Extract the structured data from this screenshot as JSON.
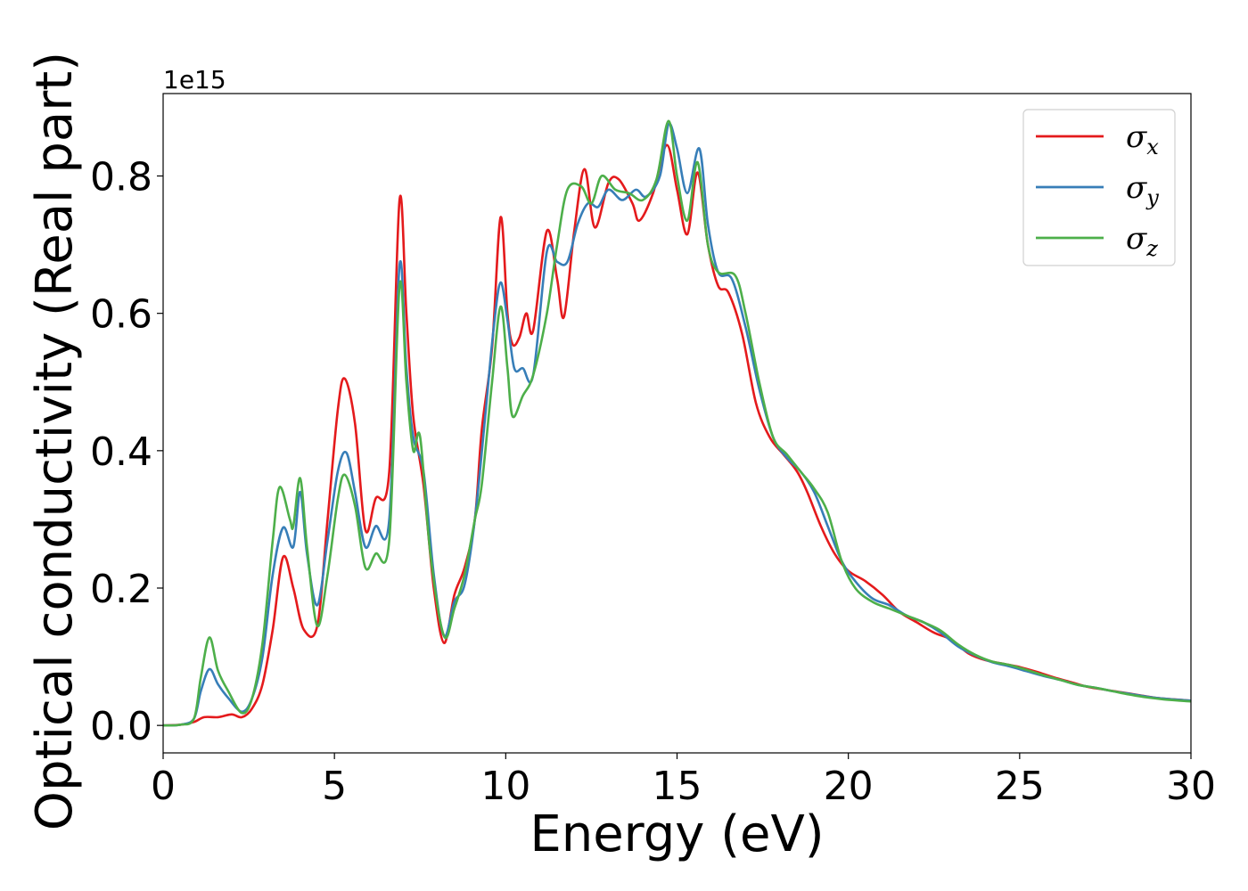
{
  "chart_data": {
    "type": "line",
    "title": "",
    "xlabel": "Energy (eV)",
    "ylabel": "Optical conductivity (Real part)",
    "y_offset_label": "1e15",
    "y_scale": 1000000000000000.0,
    "xlim": [
      0,
      30
    ],
    "ylim": [
      -0.04,
      0.92
    ],
    "xticks": [
      0,
      5,
      10,
      15,
      20,
      25,
      30
    ],
    "xtick_labels": [
      "0",
      "5",
      "10",
      "15",
      "20",
      "25",
      "30"
    ],
    "yticks": [
      0.0,
      0.2,
      0.4,
      0.6,
      0.8
    ],
    "ytick_labels": [
      "0.0",
      "0.2",
      "0.4",
      "0.6",
      "0.8"
    ],
    "grid": false,
    "legend_position": "top-right",
    "series": [
      {
        "name": "σx",
        "legend_symbol": "σ",
        "legend_sub": "x",
        "color": "#e41a1c",
        "points": [
          [
            0,
            0
          ],
          [
            0.5,
            0.001
          ],
          [
            0.9,
            0.005
          ],
          [
            1.2,
            0.012
          ],
          [
            1.6,
            0.012
          ],
          [
            2.0,
            0.016
          ],
          [
            2.3,
            0.012
          ],
          [
            2.6,
            0.025
          ],
          [
            2.9,
            0.06
          ],
          [
            3.2,
            0.14
          ],
          [
            3.5,
            0.245
          ],
          [
            3.8,
            0.2
          ],
          [
            4.1,
            0.14
          ],
          [
            4.5,
            0.145
          ],
          [
            4.8,
            0.3
          ],
          [
            5.1,
            0.46
          ],
          [
            5.3,
            0.505
          ],
          [
            5.6,
            0.44
          ],
          [
            5.9,
            0.285
          ],
          [
            6.2,
            0.33
          ],
          [
            6.6,
            0.37
          ],
          [
            6.9,
            0.765
          ],
          [
            7.1,
            0.6
          ],
          [
            7.3,
            0.45
          ],
          [
            7.6,
            0.35
          ],
          [
            7.9,
            0.2
          ],
          [
            8.2,
            0.12
          ],
          [
            8.5,
            0.19
          ],
          [
            8.8,
            0.23
          ],
          [
            9.1,
            0.3
          ],
          [
            9.3,
            0.43
          ],
          [
            9.6,
            0.55
          ],
          [
            9.85,
            0.74
          ],
          [
            10.05,
            0.6
          ],
          [
            10.2,
            0.555
          ],
          [
            10.4,
            0.565
          ],
          [
            10.6,
            0.6
          ],
          [
            10.8,
            0.575
          ],
          [
            11.2,
            0.72
          ],
          [
            11.5,
            0.65
          ],
          [
            11.7,
            0.595
          ],
          [
            12.0,
            0.72
          ],
          [
            12.3,
            0.81
          ],
          [
            12.6,
            0.725
          ],
          [
            13.0,
            0.79
          ],
          [
            13.3,
            0.795
          ],
          [
            13.7,
            0.76
          ],
          [
            13.9,
            0.735
          ],
          [
            14.3,
            0.775
          ],
          [
            14.7,
            0.845
          ],
          [
            15.0,
            0.78
          ],
          [
            15.3,
            0.715
          ],
          [
            15.6,
            0.805
          ],
          [
            15.9,
            0.7
          ],
          [
            16.2,
            0.64
          ],
          [
            16.5,
            0.63
          ],
          [
            16.9,
            0.57
          ],
          [
            17.3,
            0.47
          ],
          [
            17.7,
            0.42
          ],
          [
            18.1,
            0.395
          ],
          [
            18.5,
            0.37
          ],
          [
            18.8,
            0.34
          ],
          [
            19.2,
            0.29
          ],
          [
            19.6,
            0.25
          ],
          [
            20.0,
            0.225
          ],
          [
            20.5,
            0.21
          ],
          [
            21.0,
            0.19
          ],
          [
            21.5,
            0.165
          ],
          [
            22.0,
            0.15
          ],
          [
            22.5,
            0.135
          ],
          [
            23.0,
            0.125
          ],
          [
            23.5,
            0.105
          ],
          [
            24.0,
            0.095
          ],
          [
            24.5,
            0.09
          ],
          [
            25.0,
            0.085
          ],
          [
            25.5,
            0.078
          ],
          [
            26.0,
            0.07
          ],
          [
            26.5,
            0.063
          ],
          [
            27.0,
            0.056
          ],
          [
            27.5,
            0.052
          ],
          [
            28.0,
            0.048
          ],
          [
            28.5,
            0.044
          ],
          [
            29.0,
            0.04
          ],
          [
            29.5,
            0.038
          ],
          [
            30.0,
            0.036
          ]
        ]
      },
      {
        "name": "σy",
        "legend_symbol": "σ",
        "legend_sub": "y",
        "color": "#377eb8",
        "points": [
          [
            0,
            0
          ],
          [
            0.5,
            0.001
          ],
          [
            0.9,
            0.01
          ],
          [
            1.1,
            0.05
          ],
          [
            1.35,
            0.082
          ],
          [
            1.6,
            0.06
          ],
          [
            1.9,
            0.04
          ],
          [
            2.3,
            0.02
          ],
          [
            2.6,
            0.04
          ],
          [
            2.9,
            0.1
          ],
          [
            3.2,
            0.22
          ],
          [
            3.5,
            0.288
          ],
          [
            3.8,
            0.26
          ],
          [
            4.0,
            0.34
          ],
          [
            4.2,
            0.25
          ],
          [
            4.5,
            0.175
          ],
          [
            4.8,
            0.27
          ],
          [
            5.1,
            0.37
          ],
          [
            5.35,
            0.397
          ],
          [
            5.6,
            0.34
          ],
          [
            5.9,
            0.26
          ],
          [
            6.2,
            0.29
          ],
          [
            6.6,
            0.3
          ],
          [
            6.9,
            0.67
          ],
          [
            7.1,
            0.52
          ],
          [
            7.3,
            0.42
          ],
          [
            7.6,
            0.37
          ],
          [
            7.9,
            0.22
          ],
          [
            8.2,
            0.13
          ],
          [
            8.5,
            0.18
          ],
          [
            8.8,
            0.205
          ],
          [
            9.1,
            0.3
          ],
          [
            9.4,
            0.45
          ],
          [
            9.65,
            0.58
          ],
          [
            9.85,
            0.645
          ],
          [
            10.05,
            0.59
          ],
          [
            10.25,
            0.52
          ],
          [
            10.5,
            0.52
          ],
          [
            10.8,
            0.51
          ],
          [
            11.2,
            0.69
          ],
          [
            11.5,
            0.675
          ],
          [
            11.8,
            0.675
          ],
          [
            12.1,
            0.73
          ],
          [
            12.4,
            0.76
          ],
          [
            12.7,
            0.755
          ],
          [
            13.0,
            0.78
          ],
          [
            13.4,
            0.765
          ],
          [
            13.8,
            0.78
          ],
          [
            14.1,
            0.77
          ],
          [
            14.5,
            0.8
          ],
          [
            14.75,
            0.875
          ],
          [
            15.0,
            0.84
          ],
          [
            15.3,
            0.775
          ],
          [
            15.65,
            0.84
          ],
          [
            15.9,
            0.73
          ],
          [
            16.2,
            0.66
          ],
          [
            16.6,
            0.65
          ],
          [
            17.0,
            0.58
          ],
          [
            17.4,
            0.49
          ],
          [
            17.8,
            0.42
          ],
          [
            18.2,
            0.39
          ],
          [
            18.6,
            0.37
          ],
          [
            19.0,
            0.34
          ],
          [
            19.4,
            0.29
          ],
          [
            19.8,
            0.24
          ],
          [
            20.2,
            0.21
          ],
          [
            20.7,
            0.185
          ],
          [
            21.2,
            0.175
          ],
          [
            21.7,
            0.16
          ],
          [
            22.2,
            0.15
          ],
          [
            22.7,
            0.135
          ],
          [
            23.2,
            0.115
          ],
          [
            23.7,
            0.102
          ],
          [
            24.2,
            0.092
          ],
          [
            24.7,
            0.086
          ],
          [
            25.2,
            0.079
          ],
          [
            25.7,
            0.072
          ],
          [
            26.2,
            0.066
          ],
          [
            26.7,
            0.059
          ],
          [
            27.2,
            0.055
          ],
          [
            27.7,
            0.05
          ],
          [
            28.2,
            0.046
          ],
          [
            28.7,
            0.042
          ],
          [
            29.2,
            0.039
          ],
          [
            29.7,
            0.037
          ],
          [
            30.0,
            0.036
          ]
        ]
      },
      {
        "name": "σz",
        "legend_symbol": "σ",
        "legend_sub": "z",
        "color": "#4daf4a",
        "points": [
          [
            0,
            0
          ],
          [
            0.5,
            0.001
          ],
          [
            0.9,
            0.01
          ],
          [
            1.1,
            0.07
          ],
          [
            1.35,
            0.128
          ],
          [
            1.6,
            0.08
          ],
          [
            1.9,
            0.05
          ],
          [
            2.3,
            0.018
          ],
          [
            2.6,
            0.04
          ],
          [
            2.9,
            0.12
          ],
          [
            3.2,
            0.27
          ],
          [
            3.4,
            0.347
          ],
          [
            3.7,
            0.3
          ],
          [
            3.8,
            0.29
          ],
          [
            4.0,
            0.36
          ],
          [
            4.2,
            0.26
          ],
          [
            4.5,
            0.145
          ],
          [
            4.8,
            0.22
          ],
          [
            5.1,
            0.33
          ],
          [
            5.3,
            0.365
          ],
          [
            5.6,
            0.32
          ],
          [
            5.9,
            0.23
          ],
          [
            6.2,
            0.25
          ],
          [
            6.6,
            0.27
          ],
          [
            6.9,
            0.64
          ],
          [
            7.1,
            0.5
          ],
          [
            7.3,
            0.4
          ],
          [
            7.5,
            0.42
          ],
          [
            7.8,
            0.25
          ],
          [
            8.2,
            0.13
          ],
          [
            8.5,
            0.17
          ],
          [
            8.8,
            0.22
          ],
          [
            9.1,
            0.3
          ],
          [
            9.3,
            0.35
          ],
          [
            9.6,
            0.5
          ],
          [
            9.85,
            0.61
          ],
          [
            10.05,
            0.52
          ],
          [
            10.2,
            0.45
          ],
          [
            10.5,
            0.48
          ],
          [
            10.8,
            0.51
          ],
          [
            11.2,
            0.6
          ],
          [
            11.5,
            0.7
          ],
          [
            11.8,
            0.78
          ],
          [
            12.2,
            0.785
          ],
          [
            12.5,
            0.76
          ],
          [
            12.8,
            0.8
          ],
          [
            13.2,
            0.78
          ],
          [
            13.6,
            0.775
          ],
          [
            14.0,
            0.765
          ],
          [
            14.4,
            0.795
          ],
          [
            14.75,
            0.88
          ],
          [
            15.0,
            0.8
          ],
          [
            15.3,
            0.735
          ],
          [
            15.6,
            0.82
          ],
          [
            15.9,
            0.7
          ],
          [
            16.2,
            0.66
          ],
          [
            16.7,
            0.655
          ],
          [
            17.0,
            0.6
          ],
          [
            17.4,
            0.5
          ],
          [
            17.8,
            0.42
          ],
          [
            18.2,
            0.395
          ],
          [
            18.6,
            0.37
          ],
          [
            19.0,
            0.345
          ],
          [
            19.4,
            0.31
          ],
          [
            19.8,
            0.24
          ],
          [
            20.2,
            0.2
          ],
          [
            20.7,
            0.18
          ],
          [
            21.2,
            0.17
          ],
          [
            21.7,
            0.16
          ],
          [
            22.2,
            0.15
          ],
          [
            22.7,
            0.138
          ],
          [
            23.2,
            0.118
          ],
          [
            23.7,
            0.103
          ],
          [
            24.2,
            0.093
          ],
          [
            24.7,
            0.088
          ],
          [
            25.2,
            0.081
          ],
          [
            25.7,
            0.073
          ],
          [
            26.2,
            0.066
          ],
          [
            26.7,
            0.059
          ],
          [
            27.2,
            0.055
          ],
          [
            27.7,
            0.05
          ],
          [
            28.2,
            0.045
          ],
          [
            28.7,
            0.041
          ],
          [
            29.2,
            0.038
          ],
          [
            29.7,
            0.036
          ],
          [
            30.0,
            0.035
          ]
        ]
      }
    ]
  }
}
